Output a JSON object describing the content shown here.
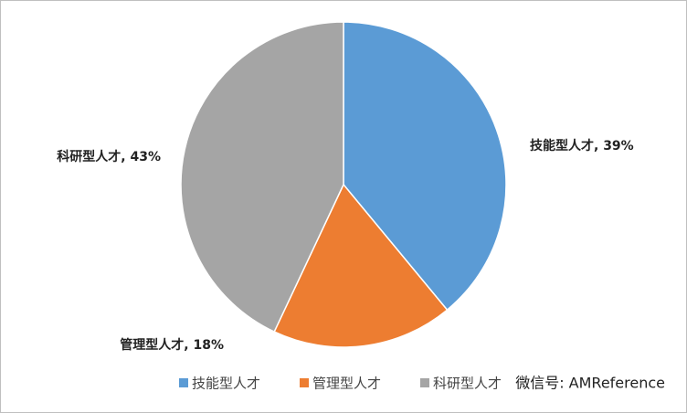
{
  "chart_data": {
    "type": "pie",
    "categories": [
      "技能型人才",
      "管理型人才",
      "科研型人才"
    ],
    "values": [
      39,
      18,
      43
    ],
    "value_labels": [
      "技能型人才, 39%",
      "管理型人才, 18%",
      "科研型人才, 43%"
    ],
    "colors": [
      "#5b9bd5",
      "#ed7d31",
      "#a5a5a5"
    ],
    "legend": "bottom"
  },
  "watermark": "微信号: AMReference"
}
